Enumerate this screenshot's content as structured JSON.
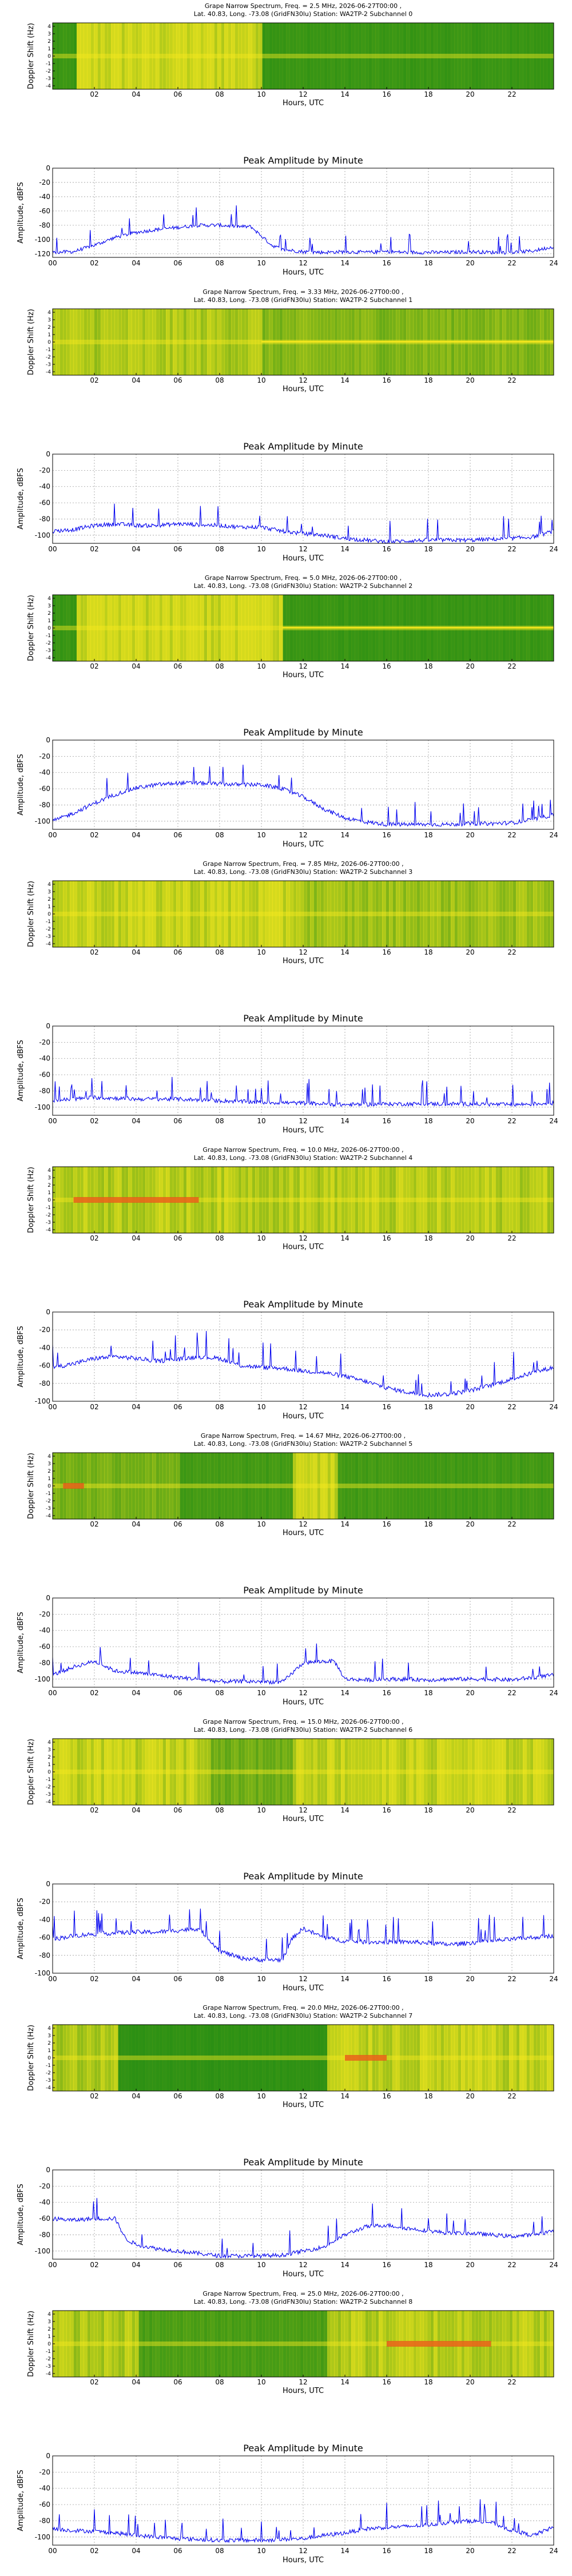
{
  "charts": [
    {
      "spec_title": "Grape Narrow Spectrum, Freq. = 2.5 MHz, 2026-06-27T00:00 ,",
      "spec_subtitle": "Lat.  40.83, Long. -73.08 (GridFN30lu) Station: WA2TP-2 Subchannel 0",
      "amp_title": "Peak Amplitude by Minute",
      "amp_ylabel": "Amplitude, dBFS",
      "amp_yticks": [
        0,
        -20,
        -40,
        -60,
        -80,
        -100,
        -120
      ]
    },
    {
      "spec_title": "Grape Narrow Spectrum, Freq. = 3.33 MHz, 2026-06-27T00:00 ,",
      "spec_subtitle": "Lat.  40.83, Long. -73.08 (GridFN30lu) Station: WA2TP-2 Subchannel 1",
      "amp_title": "Peak Amplitude by Minute",
      "amp_ylabel": "Amplitude, dBFS",
      "amp_yticks": [
        0,
        -20,
        -40,
        -60,
        -80,
        -100
      ]
    },
    {
      "spec_title": "Grape Narrow Spectrum, Freq. = 5.0 MHz, 2026-06-27T00:00 ,",
      "spec_subtitle": "Lat.  40.83, Long. -73.08 (GridFN30lu) Station: WA2TP-2 Subchannel 2",
      "amp_title": "Peak Amplitude by Minute",
      "amp_ylabel": "Amplitude, dBFS",
      "amp_yticks": [
        0,
        -20,
        -40,
        -60,
        -80,
        -100
      ]
    },
    {
      "spec_title": "Grape Narrow Spectrum, Freq. = 7.85 MHz, 2026-06-27T00:00 ,",
      "spec_subtitle": "Lat.  40.83, Long. -73.08 (GridFN30lu) Station: WA2TP-2 Subchannel 3",
      "amp_title": "Peak Amplitude by Minute",
      "amp_ylabel": "Amplitude, dBFS",
      "amp_yticks": [
        0,
        -20,
        -40,
        -60,
        -80,
        -100
      ]
    },
    {
      "spec_title": "Grape Narrow Spectrum, Freq. = 10.0 MHz, 2026-06-27T00:00 ,",
      "spec_subtitle": "Lat.  40.83, Long. -73.08 (GridFN30lu) Station: WA2TP-2 Subchannel 4",
      "amp_title": "Peak Amplitude by Minute",
      "amp_ylabel": "Amplitude, dBFS",
      "amp_yticks": [
        0,
        -20,
        -40,
        -60,
        -80,
        -100
      ]
    },
    {
      "spec_title": "Grape Narrow Spectrum, Freq. = 14.67 MHz, 2026-06-27T00:00 ,",
      "spec_subtitle": "Lat.  40.83, Long. -73.08 (GridFN30lu) Station: WA2TP-2 Subchannel 5",
      "amp_title": "Peak Amplitude by Minute",
      "amp_ylabel": "Amplitude, dBFS",
      "amp_yticks": [
        0,
        -20,
        -40,
        -60,
        -80,
        -100
      ]
    },
    {
      "spec_title": "Grape Narrow Spectrum, Freq. = 15.0 MHz, 2026-06-27T00:00 ,",
      "spec_subtitle": "Lat.  40.83, Long. -73.08 (GridFN30lu) Station: WA2TP-2 Subchannel 6",
      "amp_title": "Peak Amplitude by Minute",
      "amp_ylabel": "Amplitude, dBFS",
      "amp_yticks": [
        0,
        -20,
        -40,
        -60,
        -80,
        -100
      ]
    },
    {
      "spec_title": "Grape Narrow Spectrum, Freq. = 20.0 MHz, 2026-06-27T00:00 ,",
      "spec_subtitle": "Lat.  40.83, Long. -73.08 (GridFN30lu) Station: WA2TP-2 Subchannel 7",
      "amp_title": "Peak Amplitude by Minute",
      "amp_ylabel": "Amplitude, dBFS",
      "amp_yticks": [
        0,
        -20,
        -40,
        -60,
        -80,
        -100
      ]
    },
    {
      "spec_title": "Grape Narrow Spectrum, Freq. = 25.0 MHz, 2026-06-27T00:00 ,",
      "spec_subtitle": "Lat.  40.83, Long. -73.08 (GridFN30lu) Station: WA2TP-2 Subchannel 8",
      "amp_title": "Peak Amplitude by Minute",
      "amp_ylabel": "Amplitude, dBFS",
      "amp_yticks": [
        0,
        -20,
        -40,
        -60,
        -80,
        -100
      ]
    }
  ],
  "spec_common": {
    "ylabel": "Doppler Shift (Hz)",
    "xlabel": "Hours, UTC",
    "xticks": [
      "02",
      "04",
      "06",
      "08",
      "10",
      "12",
      "14",
      "16",
      "18",
      "20",
      "22"
    ],
    "yticks": [
      "4",
      "3",
      "2",
      "1",
      "0",
      "-1",
      "-2",
      "-3",
      "-4"
    ]
  },
  "amp_common": {
    "xlabel": "Hours, UTC",
    "xticks": [
      "00",
      "02",
      "04",
      "06",
      "08",
      "10",
      "12",
      "14",
      "16",
      "18",
      "20",
      "22",
      "24"
    ]
  },
  "colors": {
    "trace": "#0000ee",
    "spec_base": "#1e8a14",
    "spec_signal": "#f7e81e",
    "spec_peak": "#e8501a"
  },
  "chart_data": [
    {
      "type": "line",
      "series": [
        {
          "x": [
            0,
            1,
            2,
            3,
            4,
            5,
            6,
            7,
            8,
            9,
            9.5,
            10,
            10.5,
            11,
            12,
            13,
            14,
            15,
            16,
            17,
            18,
            19,
            20,
            21,
            22,
            23,
            24
          ],
          "values": [
            -118,
            -117,
            -108,
            -97,
            -90,
            -86,
            -83,
            -80,
            -80,
            -82,
            -82,
            -95,
            -108,
            -114,
            -117,
            -118,
            -117,
            -118,
            -117,
            -118,
            -118,
            -118,
            -117,
            -118,
            -118,
            -116,
            -110
          ]
        }
      ],
      "ylim": [
        -125,
        0
      ],
      "xlim": [
        0,
        24
      ]
    },
    {
      "type": "line",
      "series": [
        {
          "x": [
            0,
            1,
            2,
            3,
            4,
            5,
            6,
            7,
            8,
            9,
            10,
            11,
            12,
            13,
            14,
            15,
            16,
            17,
            18,
            19,
            20,
            21,
            22,
            23,
            24
          ],
          "values": [
            -95,
            -93,
            -88,
            -86,
            -88,
            -88,
            -86,
            -87,
            -88,
            -90,
            -90,
            -95,
            -98,
            -100,
            -104,
            -106,
            -108,
            -107,
            -106,
            -106,
            -106,
            -105,
            -104,
            -102,
            -95
          ]
        }
      ],
      "ylim": [
        -110,
        0
      ],
      "xlim": [
        0,
        24
      ]
    },
    {
      "type": "line",
      "series": [
        {
          "x": [
            0,
            1,
            2,
            3,
            4,
            5,
            6,
            7,
            8,
            9,
            10,
            11,
            12,
            13,
            14,
            15,
            16,
            17,
            18,
            19,
            20,
            21,
            22,
            23,
            24
          ],
          "values": [
            -100,
            -90,
            -78,
            -67,
            -59,
            -55,
            -53,
            -53,
            -54,
            -55,
            -55,
            -60,
            -70,
            -85,
            -96,
            -101,
            -104,
            -104,
            -104,
            -104,
            -103,
            -103,
            -102,
            -98,
            -92
          ]
        }
      ],
      "ylim": [
        -110,
        0
      ],
      "xlim": [
        0,
        24
      ]
    },
    {
      "type": "line",
      "series": [
        {
          "x": [
            0,
            2,
            4,
            6,
            8,
            10,
            12,
            14,
            16,
            18,
            20,
            22,
            24
          ],
          "values": [
            -92,
            -88,
            -90,
            -90,
            -92,
            -94,
            -95,
            -97,
            -96,
            -96,
            -96,
            -97,
            -95
          ]
        }
      ],
      "ylim": [
        -110,
        0
      ],
      "xlim": [
        0,
        24
      ]
    },
    {
      "type": "line",
      "series": [
        {
          "x": [
            0,
            1,
            2,
            3,
            4,
            5,
            6,
            7,
            8,
            9,
            10,
            11,
            12,
            13,
            14,
            15,
            16,
            17,
            18,
            19,
            20,
            21,
            22,
            23,
            24
          ],
          "values": [
            -62,
            -58,
            -52,
            -50,
            -52,
            -55,
            -53,
            -50,
            -52,
            -60,
            -62,
            -63,
            -66,
            -68,
            -72,
            -78,
            -85,
            -90,
            -93,
            -92,
            -88,
            -82,
            -75,
            -68,
            -62
          ]
        }
      ],
      "ylim": [
        -100,
        0
      ],
      "xlim": [
        0,
        24
      ]
    },
    {
      "type": "line",
      "series": [
        {
          "x": [
            0,
            1,
            2,
            3,
            4,
            5,
            6,
            7,
            8,
            9,
            10,
            11,
            12,
            13,
            13.5,
            14,
            15,
            16,
            17,
            18,
            19,
            20,
            21,
            22,
            23,
            24
          ],
          "values": [
            -95,
            -85,
            -78,
            -90,
            -92,
            -95,
            -98,
            -100,
            -103,
            -103,
            -103,
            -104,
            -80,
            -78,
            -78,
            -100,
            -101,
            -100,
            -100,
            -101,
            -100,
            -100,
            -100,
            -101,
            -98,
            -95
          ]
        }
      ],
      "ylim": [
        -110,
        0
      ],
      "xlim": [
        0,
        24
      ]
    },
    {
      "type": "line",
      "series": [
        {
          "x": [
            0,
            1,
            2,
            3,
            4,
            5,
            6,
            7,
            7.5,
            8,
            9,
            10,
            11,
            11.5,
            12,
            13,
            14,
            15,
            16,
            17,
            18,
            19,
            20,
            21,
            22,
            23,
            24
          ],
          "values": [
            -62,
            -58,
            -56,
            -55,
            -54,
            -54,
            -52,
            -50,
            -62,
            -75,
            -83,
            -85,
            -85,
            -60,
            -50,
            -60,
            -64,
            -65,
            -65,
            -65,
            -66,
            -68,
            -66,
            -64,
            -62,
            -60,
            -58
          ]
        }
      ],
      "ylim": [
        -100,
        0
      ],
      "xlim": [
        0,
        24
      ]
    },
    {
      "type": "line",
      "series": [
        {
          "x": [
            0,
            1,
            2,
            3,
            3.5,
            4,
            5,
            6,
            7,
            8,
            9,
            10,
            11,
            12,
            13,
            14,
            15,
            16,
            17,
            18,
            19,
            20,
            21,
            22,
            23,
            24
          ],
          "values": [
            -60,
            -62,
            -60,
            -60,
            -85,
            -92,
            -97,
            -100,
            -103,
            -106,
            -106,
            -106,
            -105,
            -100,
            -95,
            -80,
            -70,
            -68,
            -72,
            -75,
            -78,
            -78,
            -80,
            -82,
            -80,
            -75
          ]
        }
      ],
      "ylim": [
        -110,
        0
      ],
      "xlim": [
        0,
        24
      ]
    },
    {
      "type": "line",
      "series": [
        {
          "x": [
            0,
            1,
            2,
            3,
            4,
            5,
            6,
            7,
            8,
            9,
            10,
            11,
            12,
            13,
            14,
            15,
            16,
            17,
            18,
            19,
            20,
            21,
            22,
            23,
            24
          ],
          "values": [
            -90,
            -92,
            -93,
            -95,
            -98,
            -100,
            -102,
            -103,
            -104,
            -104,
            -104,
            -103,
            -102,
            -98,
            -95,
            -90,
            -88,
            -87,
            -85,
            -82,
            -80,
            -82,
            -92,
            -98,
            -88
          ]
        }
      ],
      "ylim": [
        -110,
        0
      ],
      "xlim": [
        0,
        24
      ]
    }
  ]
}
